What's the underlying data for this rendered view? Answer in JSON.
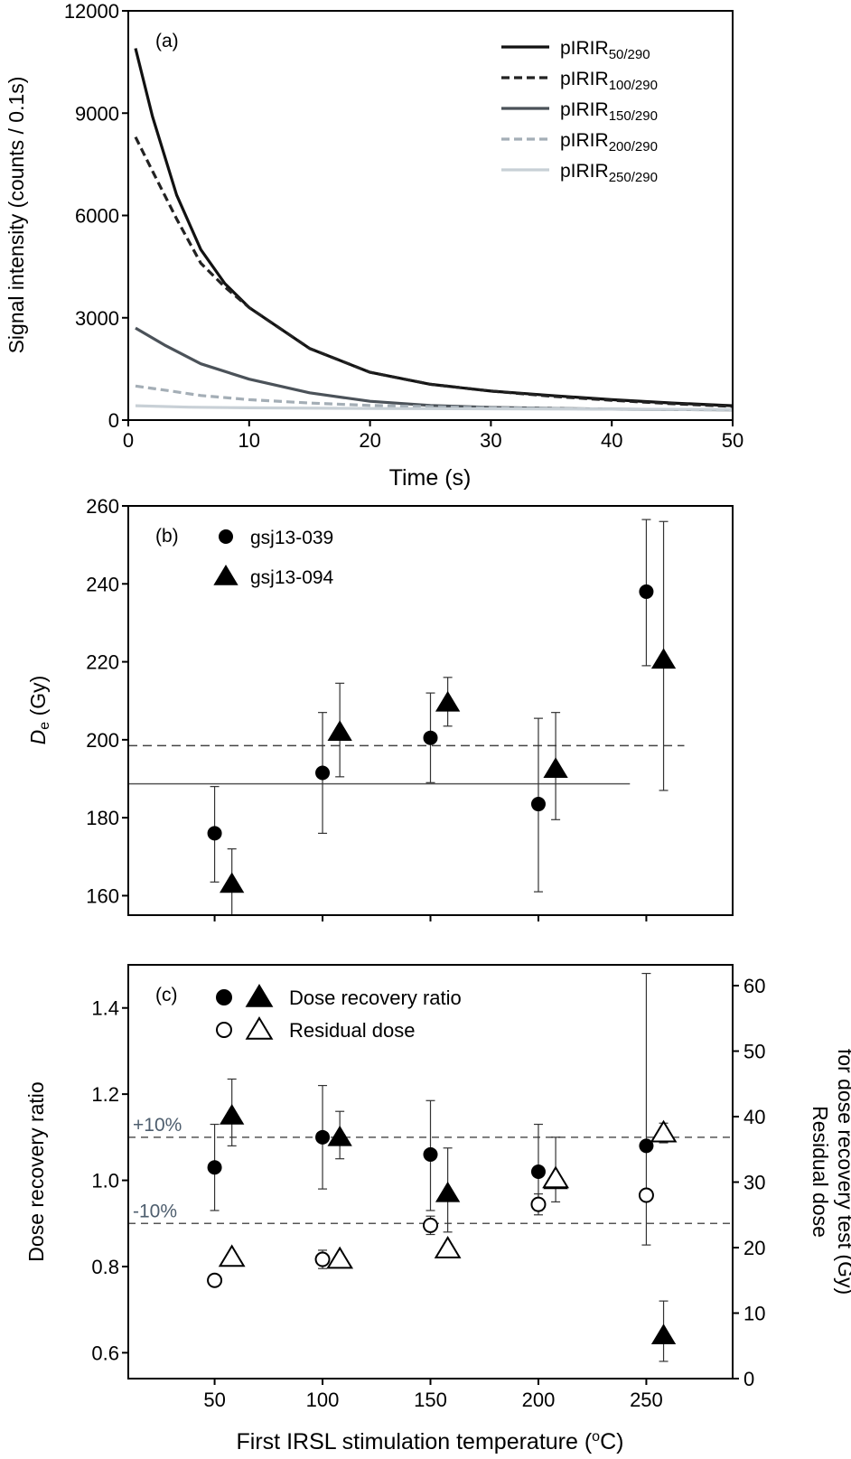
{
  "chart_data": [
    {
      "type": "line",
      "panel_label": "(a)",
      "xlabel": "Time (s)",
      "ylabel": "Signal intensity (counts / 0.1s)",
      "xlim": [
        0,
        50
      ],
      "ylim": [
        0,
        12000
      ],
      "xticks": [
        "0",
        "10",
        "20",
        "30",
        "40",
        "50"
      ],
      "yticks": [
        "0",
        "3000",
        "6000",
        "9000",
        "12000"
      ],
      "legend_position": "top-right",
      "series": [
        {
          "name_main": "pIRIR",
          "name_sub": "50/290",
          "color": "#111111",
          "dash": "solid",
          "x": [
            0.6,
            2,
            4,
            6,
            8,
            10,
            15,
            20,
            25,
            30,
            35,
            40,
            45,
            50
          ],
          "y": [
            10900,
            8900,
            6600,
            5000,
            4000,
            3300,
            2100,
            1400,
            1050,
            850,
            720,
            600,
            500,
            420
          ]
        },
        {
          "name_main": "pIRIR",
          "name_sub": "100/290",
          "color": "#222222",
          "dash": "dashed",
          "x": [
            0.6,
            2,
            4,
            6,
            8,
            10,
            15,
            20,
            25,
            30,
            35,
            40,
            45,
            50
          ],
          "y": [
            8300,
            7300,
            5900,
            4600,
            3900,
            3300,
            2100,
            1400,
            1050,
            850,
            700,
            580,
            480,
            400
          ]
        },
        {
          "name_main": "pIRIR",
          "name_sub": "150/290",
          "color": "#4b5259",
          "dash": "solid",
          "x": [
            0.6,
            3,
            6,
            10,
            15,
            20,
            25,
            30,
            40,
            50
          ],
          "y": [
            2700,
            2200,
            1650,
            1200,
            800,
            550,
            430,
            370,
            320,
            300
          ]
        },
        {
          "name_main": "pIRIR",
          "name_sub": "200/290",
          "color": "#a4aeb6",
          "dash": "dashed",
          "x": [
            0.6,
            3,
            6,
            10,
            15,
            20,
            30,
            40,
            50
          ],
          "y": [
            1000,
            880,
            720,
            600,
            500,
            430,
            360,
            320,
            300
          ]
        },
        {
          "name_main": "pIRIR",
          "name_sub": "250/290",
          "color": "#c8d0d6",
          "dash": "solid",
          "x": [
            0.6,
            5,
            10,
            20,
            30,
            40,
            50
          ],
          "y": [
            420,
            380,
            360,
            340,
            330,
            320,
            310
          ]
        }
      ]
    },
    {
      "type": "scatter",
      "panel_label": "(b)",
      "ylabel_italic": "D",
      "ylabel_sub": "e",
      "ylabel_rest": " (Gy)",
      "ylim": [
        155,
        260
      ],
      "yticks": [
        "160",
        "180",
        "200",
        "220",
        "240",
        "260"
      ],
      "ref_lines": [
        {
          "y": 198.5,
          "style": "dashed",
          "x_end": 1.0
        },
        {
          "y": 188.7,
          "style": "solid",
          "x_end": 0.83
        }
      ],
      "series": [
        {
          "name": "gsj13-039",
          "marker": "circle",
          "x": [
            50,
            100,
            150,
            200,
            250
          ],
          "y": [
            176,
            191.5,
            200.5,
            183.5,
            238
          ],
          "err_low": [
            163.5,
            176,
            189,
            161,
            219
          ],
          "err_high": [
            188,
            207,
            212,
            205.5,
            256.5
          ]
        },
        {
          "name": "gsj13-094",
          "marker": "triangle",
          "x": [
            50,
            100,
            150,
            200,
            250
          ],
          "y": [
            163,
            202,
            209.5,
            192.5,
            220.5
          ],
          "err_low": [
            155,
            190.5,
            203.5,
            179.5,
            187
          ],
          "err_high": [
            172,
            214.5,
            216,
            207,
            256
          ]
        }
      ]
    },
    {
      "type": "scatter",
      "panel_label": "(c)",
      "xlabel": "First IRSL stimulation temperature (°C)",
      "xlabel_main": "First IRSL stimulation temperature (",
      "xlabel_sup": "o",
      "xlabel_end": "C)",
      "xlim": [
        10,
        290
      ],
      "xticks": [
        "50",
        "100",
        "150",
        "200",
        "250"
      ],
      "ylabel": "Dose recovery ratio",
      "ylim": [
        0.54,
        1.5
      ],
      "yticks": [
        "0.6",
        "0.8",
        "1.0",
        "1.2",
        "1.4"
      ],
      "ylabel_right_line1": "Residual dose",
      "ylabel_right_line2": "for dose recovery test (Gy)",
      "y2lim": [
        0,
        60
      ],
      "y2ticks": [
        "0",
        "10",
        "20",
        "30",
        "40",
        "50",
        "60"
      ],
      "legend": [
        {
          "label": "Dose recovery ratio",
          "filled": true
        },
        {
          "label": "Residual dose",
          "filled": false
        }
      ],
      "ref_lines": [
        {
          "y": 1.1,
          "label": "+10%"
        },
        {
          "y": 0.9,
          "label": "-10%"
        }
      ],
      "ratio_series": [
        {
          "marker": "circle",
          "x": [
            50,
            100,
            150,
            200,
            250
          ],
          "y": [
            1.03,
            1.1,
            1.06,
            1.02,
            1.08
          ],
          "err_low": [
            0.93,
            0.98,
            0.93,
            0.93,
            0.85
          ],
          "err_high": [
            1.13,
            1.22,
            1.185,
            1.13,
            1.48
          ]
        },
        {
          "marker": "triangle",
          "x": [
            58,
            108,
            158,
            208,
            258
          ],
          "y": [
            1.15,
            1.1,
            0.97,
            1.0,
            0.64
          ],
          "err_low": [
            1.08,
            1.05,
            0.88,
            0.95,
            0.58
          ],
          "err_high": [
            1.235,
            1.16,
            1.075,
            1.1,
            0.72
          ]
        }
      ],
      "residual_series": [
        {
          "marker": "circle",
          "x": [
            50,
            100,
            150,
            200,
            250
          ],
          "y": [
            15,
            18.2,
            23.4,
            26.6,
            28
          ],
          "err_low": [
            14.5,
            16.8,
            22,
            25,
            28
          ],
          "err_high": [
            15.5,
            19.6,
            24.8,
            28.2,
            28
          ]
        },
        {
          "marker": "triangle",
          "x": [
            58,
            108,
            158,
            208,
            258
          ],
          "y": [
            18.5,
            18.2,
            19.8,
            30.5,
            37.5
          ],
          "err_low": [
            18.5,
            18.2,
            19.8,
            30.5,
            36
          ],
          "err_high": [
            18.5,
            18.2,
            19.8,
            30.5,
            39
          ]
        }
      ]
    }
  ]
}
